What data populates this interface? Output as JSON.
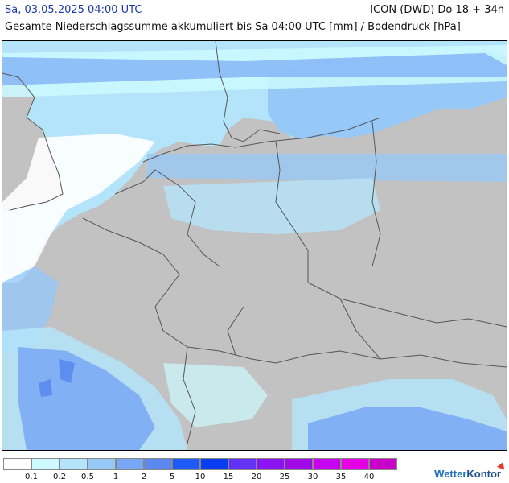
{
  "header": {
    "datetime": "Sa, 03.05.2025 04:00 UTC",
    "model": "ICON (DWD) Do 18 + 34h",
    "subtitle": "Gesamte Niederschlagssumme akkumuliert bis Sa 04:00 UTC [mm] / Bodendruck [hPa]"
  },
  "legend": {
    "ticks": [
      "0.1",
      "0.2",
      "0.5",
      "1",
      "2",
      "5",
      "10",
      "15",
      "20",
      "25",
      "30",
      "35",
      "40"
    ],
    "colors": [
      "#ffffff",
      "#ccfaff",
      "#b4e4fa",
      "#96c8f8",
      "#78a8f5",
      "#5a8af0",
      "#1e5af5",
      "#0a3cf0",
      "#6432f5",
      "#8c14f0",
      "#a00ae6",
      "#c800f0",
      "#e600e6",
      "#c800c8"
    ]
  },
  "map": {
    "land_color": "#c2c2c2",
    "border_color": "#555555",
    "precip_colors": [
      "#ccfaff",
      "#b4e4fa",
      "#96c8f8",
      "#78a8f5",
      "#5a8af0",
      "#1e5af5"
    ]
  },
  "branding": {
    "logo_part1": "Wetter",
    "logo_part2": "Kontor"
  }
}
